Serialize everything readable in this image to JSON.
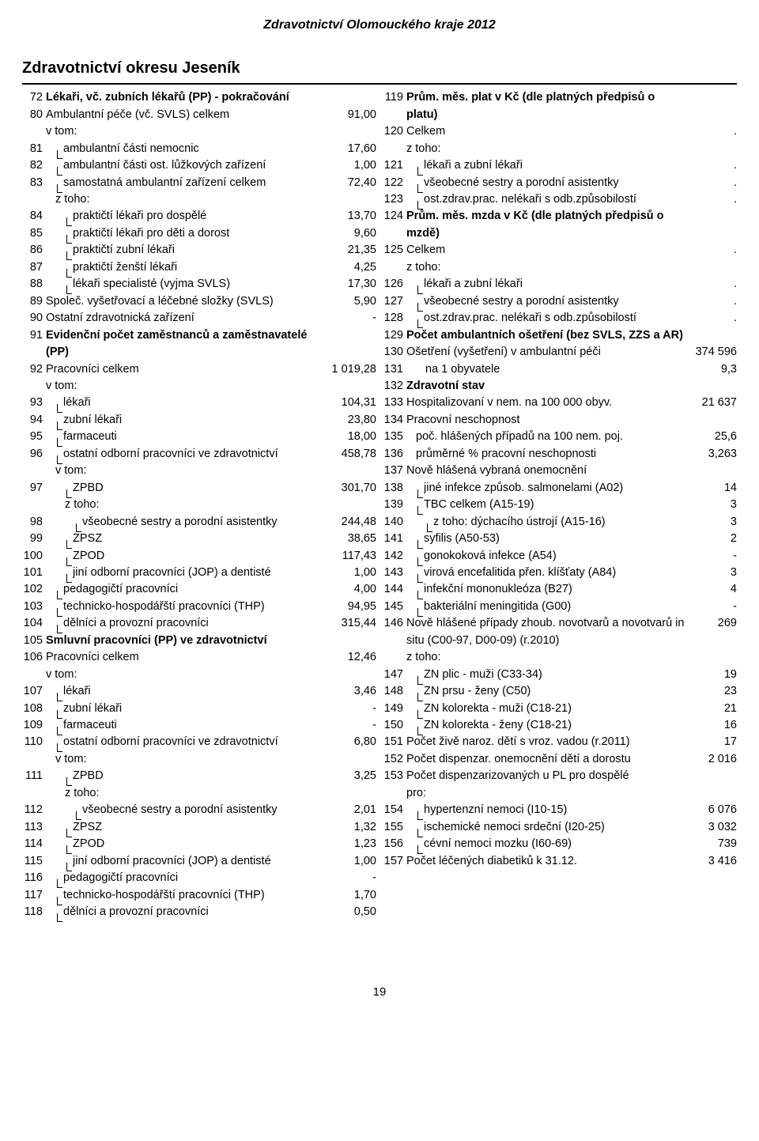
{
  "doc_header": "Zdravotnictví Olomouckého kraje 2012",
  "section_title": "Zdravotnictví okresu Jeseník",
  "page_number": "19",
  "left": [
    {
      "n": "72",
      "b": true,
      "i": 0,
      "t": "Lékaři, vč. zubních lékařů (PP) - pokračování",
      "v": ""
    },
    {
      "n": "80",
      "b": false,
      "i": 0,
      "t": "Ambulantní péče (vč. SVLS) celkem",
      "v": "91,00"
    },
    {
      "n": "",
      "b": false,
      "i": 0,
      "sub": "v tom:",
      "v": ""
    },
    {
      "n": "81",
      "b": false,
      "i": 1,
      "tree": true,
      "t": "ambulantní části nemocnic",
      "v": "17,60"
    },
    {
      "n": "82",
      "b": false,
      "i": 1,
      "tree": true,
      "t": "ambulantní části ost. lůžkových zařízení",
      "v": "1,00"
    },
    {
      "n": "83",
      "b": false,
      "i": 1,
      "tree": true,
      "t": "samostatná ambulantní zařízení celkem",
      "v": "72,40"
    },
    {
      "n": "",
      "b": false,
      "i": 1,
      "sub": "z toho:",
      "v": ""
    },
    {
      "n": "84",
      "b": false,
      "i": 2,
      "tree": true,
      "t": "praktičtí lékaři pro dospělé",
      "v": "13,70"
    },
    {
      "n": "85",
      "b": false,
      "i": 2,
      "tree": true,
      "t": "praktičtí lékaři pro děti a dorost",
      "v": "9,60"
    },
    {
      "n": "86",
      "b": false,
      "i": 2,
      "tree": true,
      "t": "praktičtí zubní lékaři",
      "v": "21,35"
    },
    {
      "n": "87",
      "b": false,
      "i": 2,
      "tree": true,
      "t": "praktičtí ženští lékaři",
      "v": "4,25"
    },
    {
      "n": "88",
      "b": false,
      "i": 2,
      "tree": true,
      "t": "lékaři specialisté (vyjma SVLS)",
      "v": "17,30"
    },
    {
      "n": "89",
      "b": false,
      "i": 0,
      "t": "Společ. vyšetřovací a léčebné složky (SVLS)",
      "v": "5,90"
    },
    {
      "n": "90",
      "b": false,
      "i": 0,
      "t": "Ostatní zdravotnická zařízení",
      "v": "-"
    },
    {
      "n": "91",
      "b": true,
      "i": 0,
      "t": "Evidenční počet zaměstnanců a zaměstnavatelé (PP)",
      "v": ""
    },
    {
      "n": "92",
      "b": false,
      "i": 0,
      "t": "Pracovníci celkem",
      "v": "1 019,28"
    },
    {
      "n": "",
      "b": false,
      "i": 0,
      "sub": "v tom:",
      "v": ""
    },
    {
      "n": "93",
      "b": false,
      "i": 1,
      "tree": true,
      "t": "lékaři",
      "v": "104,31"
    },
    {
      "n": "94",
      "b": false,
      "i": 1,
      "tree": true,
      "t": "zubní lékaři",
      "v": "23,80"
    },
    {
      "n": "95",
      "b": false,
      "i": 1,
      "tree": true,
      "t": "farmaceuti",
      "v": "18,00"
    },
    {
      "n": "96",
      "b": false,
      "i": 1,
      "tree": true,
      "t": "ostatní odborní pracovníci ve zdravotnictví",
      "v": "458,78"
    },
    {
      "n": "",
      "b": false,
      "i": 1,
      "sub": "v tom:",
      "v": ""
    },
    {
      "n": "97",
      "b": false,
      "i": 2,
      "tree": true,
      "t": "ZPBD",
      "v": "301,70"
    },
    {
      "n": "",
      "b": false,
      "i": 2,
      "sub": "z toho:",
      "v": ""
    },
    {
      "n": "98",
      "b": false,
      "i": 3,
      "tree": true,
      "t": "všeobecné sestry a porodní asistentky",
      "v": "244,48"
    },
    {
      "n": "99",
      "b": false,
      "i": 2,
      "tree": true,
      "t": "ZPSZ",
      "v": "38,65"
    },
    {
      "n": "100",
      "b": false,
      "i": 2,
      "tree": true,
      "t": "ZPOD",
      "v": "117,43"
    },
    {
      "n": "101",
      "b": false,
      "i": 2,
      "tree": true,
      "t": "jiní odborní pracovníci (JOP) a dentisté",
      "v": "1,00"
    },
    {
      "n": "102",
      "b": false,
      "i": 1,
      "tree": true,
      "t": "pedagogičtí pracovníci",
      "v": "4,00"
    },
    {
      "n": "103",
      "b": false,
      "i": 1,
      "tree": true,
      "t": "technicko-hospodářští pracovníci (THP)",
      "v": "94,95"
    },
    {
      "n": "104",
      "b": false,
      "i": 1,
      "tree": true,
      "t": "dělníci a provozní pracovníci",
      "v": "315,44"
    },
    {
      "n": "105",
      "b": true,
      "i": 0,
      "t": "Smluvní pracovníci (PP) ve zdravotnictví",
      "v": ""
    },
    {
      "n": "106",
      "b": false,
      "i": 0,
      "t": "Pracovníci celkem",
      "v": "12,46"
    },
    {
      "n": "",
      "b": false,
      "i": 0,
      "sub": "v tom:",
      "v": ""
    },
    {
      "n": "107",
      "b": false,
      "i": 1,
      "tree": true,
      "t": "lékaři",
      "v": "3,46"
    },
    {
      "n": "108",
      "b": false,
      "i": 1,
      "tree": true,
      "t": "zubní lékaři",
      "v": "-"
    },
    {
      "n": "109",
      "b": false,
      "i": 1,
      "tree": true,
      "t": "farmaceuti",
      "v": "-"
    },
    {
      "n": "110",
      "b": false,
      "i": 1,
      "tree": true,
      "t": "ostatní odborní pracovníci ve zdravotnictví",
      "v": "6,80"
    },
    {
      "n": "",
      "b": false,
      "i": 1,
      "sub": "v tom:",
      "v": ""
    },
    {
      "n": "111",
      "b": false,
      "i": 2,
      "tree": true,
      "t": "ZPBD",
      "v": "3,25"
    },
    {
      "n": "",
      "b": false,
      "i": 2,
      "sub": "z toho:",
      "v": ""
    },
    {
      "n": "112",
      "b": false,
      "i": 3,
      "tree": true,
      "t": "všeobecné sestry a porodní asistentky",
      "v": "2,01"
    },
    {
      "n": "113",
      "b": false,
      "i": 2,
      "tree": true,
      "t": "ZPSZ",
      "v": "1,32"
    },
    {
      "n": "114",
      "b": false,
      "i": 2,
      "tree": true,
      "t": "ZPOD",
      "v": "1,23"
    },
    {
      "n": "115",
      "b": false,
      "i": 2,
      "tree": true,
      "t": "jiní odborní pracovníci (JOP) a dentisté",
      "v": "1,00"
    },
    {
      "n": "116",
      "b": false,
      "i": 1,
      "tree": true,
      "t": "pedagogičtí pracovníci",
      "v": "-"
    },
    {
      "n": "117",
      "b": false,
      "i": 1,
      "tree": true,
      "t": "technicko-hospodářští pracovníci (THP)",
      "v": "1,70"
    },
    {
      "n": "118",
      "b": false,
      "i": 1,
      "tree": true,
      "t": "dělníci a provozní pracovníci",
      "v": "0,50"
    }
  ],
  "right": [
    {
      "n": "119",
      "b": true,
      "i": 0,
      "t": "Prům. měs. plat v Kč (dle platných předpisů o platu)",
      "v": ""
    },
    {
      "n": "120",
      "b": false,
      "i": 0,
      "t": "Celkem",
      "v": "."
    },
    {
      "n": "",
      "b": false,
      "i": 0,
      "sub": "z toho:",
      "v": ""
    },
    {
      "n": "121",
      "b": false,
      "i": 1,
      "tree": true,
      "t": "lékaři a zubní lékaři",
      "v": "."
    },
    {
      "n": "122",
      "b": false,
      "i": 1,
      "tree": true,
      "t": "všeobecné sestry a porodní asistentky",
      "v": "."
    },
    {
      "n": "123",
      "b": false,
      "i": 1,
      "tree": true,
      "t": "ost.zdrav.prac. nelékaři s odb.způsobilostí",
      "v": "."
    },
    {
      "n": "124",
      "b": true,
      "i": 0,
      "t": "Prům. měs. mzda v Kč (dle platných předpisů o mzdě)",
      "v": ""
    },
    {
      "n": "125",
      "b": false,
      "i": 0,
      "t": "Celkem",
      "v": "."
    },
    {
      "n": "",
      "b": false,
      "i": 0,
      "sub": "z toho:",
      "v": ""
    },
    {
      "n": "126",
      "b": false,
      "i": 1,
      "tree": true,
      "t": "lékaři a zubní lékaři",
      "v": "."
    },
    {
      "n": "127",
      "b": false,
      "i": 1,
      "tree": true,
      "t": "všeobecné sestry a porodní asistentky",
      "v": "."
    },
    {
      "n": "128",
      "b": false,
      "i": 1,
      "tree": true,
      "t": "ost.zdrav.prac. nelékaři s odb.způsobilostí",
      "v": "."
    },
    {
      "n": "129",
      "b": true,
      "i": 0,
      "t": "Počet ambulantních ošetření (bez SVLS, ZZS a AR)",
      "v": ""
    },
    {
      "n": "130",
      "b": false,
      "i": 0,
      "t": "Ošetření (vyšetření) v ambulantní péči",
      "v": "374 596"
    },
    {
      "n": "131",
      "b": false,
      "i": 2,
      "t": "na 1 obyvatele",
      "v": "9,3"
    },
    {
      "n": "132",
      "b": true,
      "i": 0,
      "t": "Zdravotní stav",
      "v": ""
    },
    {
      "n": "133",
      "b": false,
      "i": 0,
      "t": "Hospitalizovaní v nem. na 100 000 obyv.",
      "v": "21 637"
    },
    {
      "n": "134",
      "b": false,
      "i": 0,
      "t": "Pracovní neschopnost",
      "v": ""
    },
    {
      "n": "135",
      "b": false,
      "i": 1,
      "t": "poč. hlášených případů na 100 nem. poj.",
      "v": "25,6"
    },
    {
      "n": "136",
      "b": false,
      "i": 1,
      "t": "průměrné % pracovní neschopnosti",
      "v": "3,263"
    },
    {
      "n": "137",
      "b": false,
      "i": 0,
      "t": "Nově hlášená vybraná onemocnění",
      "v": ""
    },
    {
      "n": "138",
      "b": false,
      "i": 1,
      "tree": true,
      "t": "jiné infekce způsob. salmonelami (A02)",
      "v": "14"
    },
    {
      "n": "139",
      "b": false,
      "i": 1,
      "tree": true,
      "t": "TBC celkem (A15-19)",
      "v": "3"
    },
    {
      "n": "140",
      "b": false,
      "i": 2,
      "tree": true,
      "t": "z toho: dýchacího ústrojí (A15-16)",
      "v": "3"
    },
    {
      "n": "141",
      "b": false,
      "i": 1,
      "tree": true,
      "t": "syfilis (A50-53)",
      "v": "2"
    },
    {
      "n": "142",
      "b": false,
      "i": 1,
      "tree": true,
      "t": "gonokoková infekce (A54)",
      "v": "-"
    },
    {
      "n": "143",
      "b": false,
      "i": 1,
      "tree": true,
      "t": "virová encefalitida přen. klíšťaty (A84)",
      "v": "3"
    },
    {
      "n": "144",
      "b": false,
      "i": 1,
      "tree": true,
      "t": "infekční mononukleóza (B27)",
      "v": "4"
    },
    {
      "n": "145",
      "b": false,
      "i": 1,
      "tree": true,
      "t": "bakteriální meningitida (G00)",
      "v": "-"
    },
    {
      "n": "146",
      "b": false,
      "i": 0,
      "t": "Nově hlášené případy zhoub. novotvarů a novotvarů in situ (C00-97, D00-09) (r.2010)",
      "v": "269"
    },
    {
      "n": "",
      "b": false,
      "i": 0,
      "sub": "z toho:",
      "v": ""
    },
    {
      "n": "147",
      "b": false,
      "i": 1,
      "tree": true,
      "t": "ZN plic - muži (C33-34)",
      "v": "19"
    },
    {
      "n": "148",
      "b": false,
      "i": 1,
      "tree": true,
      "t": "ZN prsu - ženy (C50)",
      "v": "23"
    },
    {
      "n": "149",
      "b": false,
      "i": 1,
      "tree": true,
      "t": "ZN kolorekta - muži (C18-21)",
      "v": "21"
    },
    {
      "n": "150",
      "b": false,
      "i": 1,
      "tree": true,
      "t": "ZN kolorekta - ženy (C18-21)",
      "v": "16"
    },
    {
      "n": "151",
      "b": false,
      "i": 0,
      "t": "Počet živě naroz. dětí s vroz. vadou (r.2011)",
      "v": "17"
    },
    {
      "n": "152",
      "b": false,
      "i": 0,
      "t": "Počet dispenzar. onemocnění dětí a dorostu",
      "v": "2 016"
    },
    {
      "n": "153",
      "b": false,
      "i": 0,
      "t": "Počet dispenzarizovaných u PL pro dospělé",
      "v": ""
    },
    {
      "n": "",
      "b": false,
      "i": 0,
      "sub": "pro:",
      "v": ""
    },
    {
      "n": "154",
      "b": false,
      "i": 1,
      "tree": true,
      "t": "hypertenzní nemoci (I10-15)",
      "v": "6 076"
    },
    {
      "n": "155",
      "b": false,
      "i": 1,
      "tree": true,
      "t": "ischemické nemoci srdeční (I20-25)",
      "v": "3 032"
    },
    {
      "n": "156",
      "b": false,
      "i": 1,
      "tree": true,
      "t": "cévní nemoci mozku (I60-69)",
      "v": "739"
    },
    {
      "n": "157",
      "b": false,
      "i": 0,
      "t": "Počet léčených diabetiků k 31.12.",
      "v": "3 416"
    }
  ]
}
